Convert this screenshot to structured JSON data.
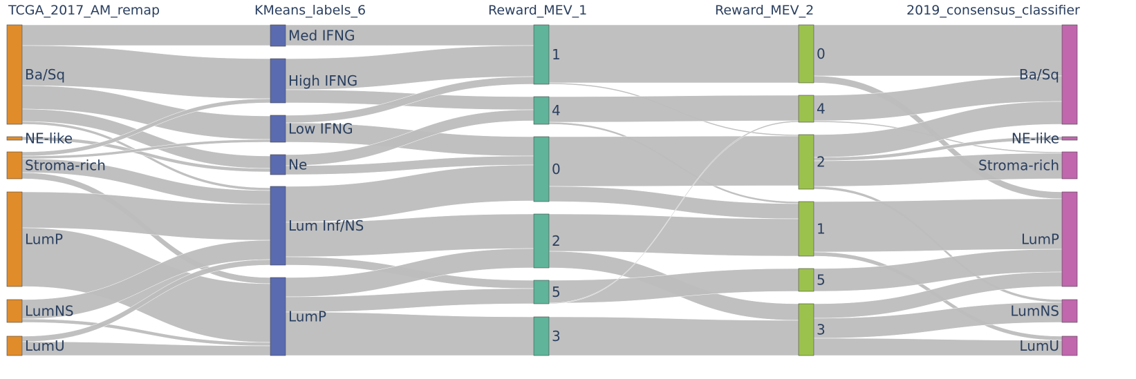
{
  "columns": [
    {
      "title": "TCGA_2017_AM_remap",
      "color": "#e08c2a",
      "nodes": [
        "Ba/Sq",
        "NE-like",
        "Stroma-rich",
        "LumP",
        "LumNS",
        "LumU"
      ]
    },
    {
      "title": "KMeans_labels_6",
      "color": "#5b6bb0",
      "nodes": [
        "Med IFNG",
        "High IFNG",
        "Low IFNG",
        "Ne",
        "Lum Inf/NS",
        "LumP"
      ]
    },
    {
      "title": "Reward_MEV_1",
      "color": "#5fb49a",
      "nodes": [
        "1",
        "4",
        "0",
        "2",
        "5",
        "3"
      ]
    },
    {
      "title": "Reward_MEV_2",
      "color": "#9cc24e",
      "nodes": [
        "0",
        "4",
        "2",
        "1",
        "5",
        "3"
      ]
    },
    {
      "title": "2019_consensus_classifier",
      "color": "#c067ad",
      "nodes": [
        "Ba/Sq",
        "NE-like",
        "Stroma-rich",
        "LumP",
        "LumNS",
        "LumU"
      ]
    }
  ],
  "link_color": "#bdbdbd"
}
